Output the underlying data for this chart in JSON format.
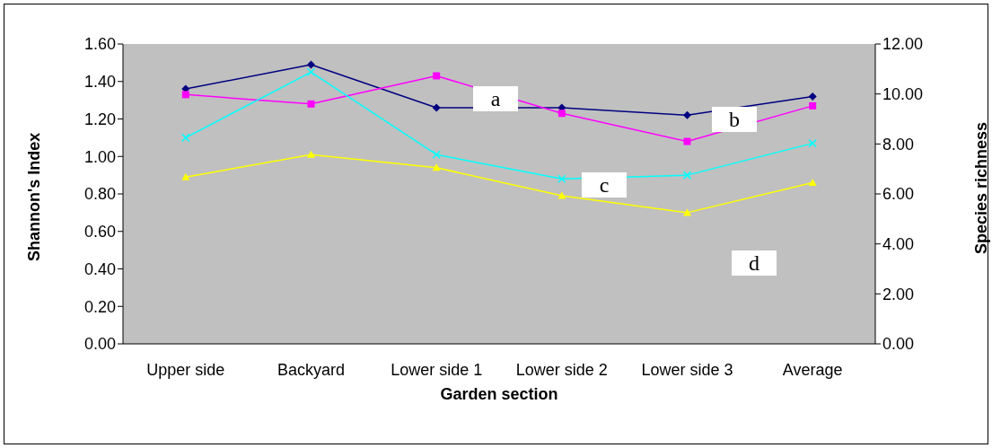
{
  "chart_data": {
    "type": "line",
    "xlabel": "Garden section",
    "ylabel": "Shannon's Index",
    "y2label": "Species richness",
    "categories": [
      "Upper side",
      "Backyard",
      "Lower side 1",
      "Lower side 2",
      "Lower side 3",
      "Average"
    ],
    "series": [
      {
        "color": "#000080",
        "marker": "diamond",
        "values": [
          1.36,
          1.49,
          1.26,
          1.26,
          1.22,
          1.32
        ]
      },
      {
        "color": "#ff00ff",
        "marker": "square",
        "values": [
          1.33,
          1.28,
          1.43,
          1.23,
          1.08,
          1.27
        ]
      },
      {
        "color": "#00ffff",
        "marker": "cross",
        "values": [
          1.1,
          1.45,
          1.01,
          0.88,
          0.9,
          1.07
        ]
      },
      {
        "color": "#ffff00",
        "marker": "triangle",
        "values": [
          0.89,
          1.01,
          0.94,
          0.79,
          0.7,
          0.86
        ]
      }
    ],
    "ylim": [
      0,
      1.6
    ],
    "yticks": [
      {
        "value": 0,
        "label": "0.00"
      },
      {
        "value": 0.2,
        "label": "0.20"
      },
      {
        "value": 0.4,
        "label": "0.40"
      },
      {
        "value": 0.6,
        "label": "0.60"
      },
      {
        "value": 0.8,
        "label": "0.80"
      },
      {
        "value": 1,
        "label": "1.00"
      },
      {
        "value": 1.2,
        "label": "1.20"
      },
      {
        "value": 1.4,
        "label": "1.40"
      },
      {
        "value": 1.6,
        "label": "1.60"
      }
    ],
    "y2lim": [
      0,
      12
    ],
    "y2ticks": [
      {
        "value": 0,
        "label": "0.00"
      },
      {
        "value": 2,
        "label": "2.00"
      },
      {
        "value": 4,
        "label": "4.00"
      },
      {
        "value": 6,
        "label": "6.00"
      },
      {
        "value": 8,
        "label": "8.00"
      },
      {
        "value": 10,
        "label": "10.00"
      },
      {
        "value": 12,
        "label": "12.00"
      }
    ],
    "annotations": [
      "a",
      "b",
      "c",
      "d"
    ]
  }
}
